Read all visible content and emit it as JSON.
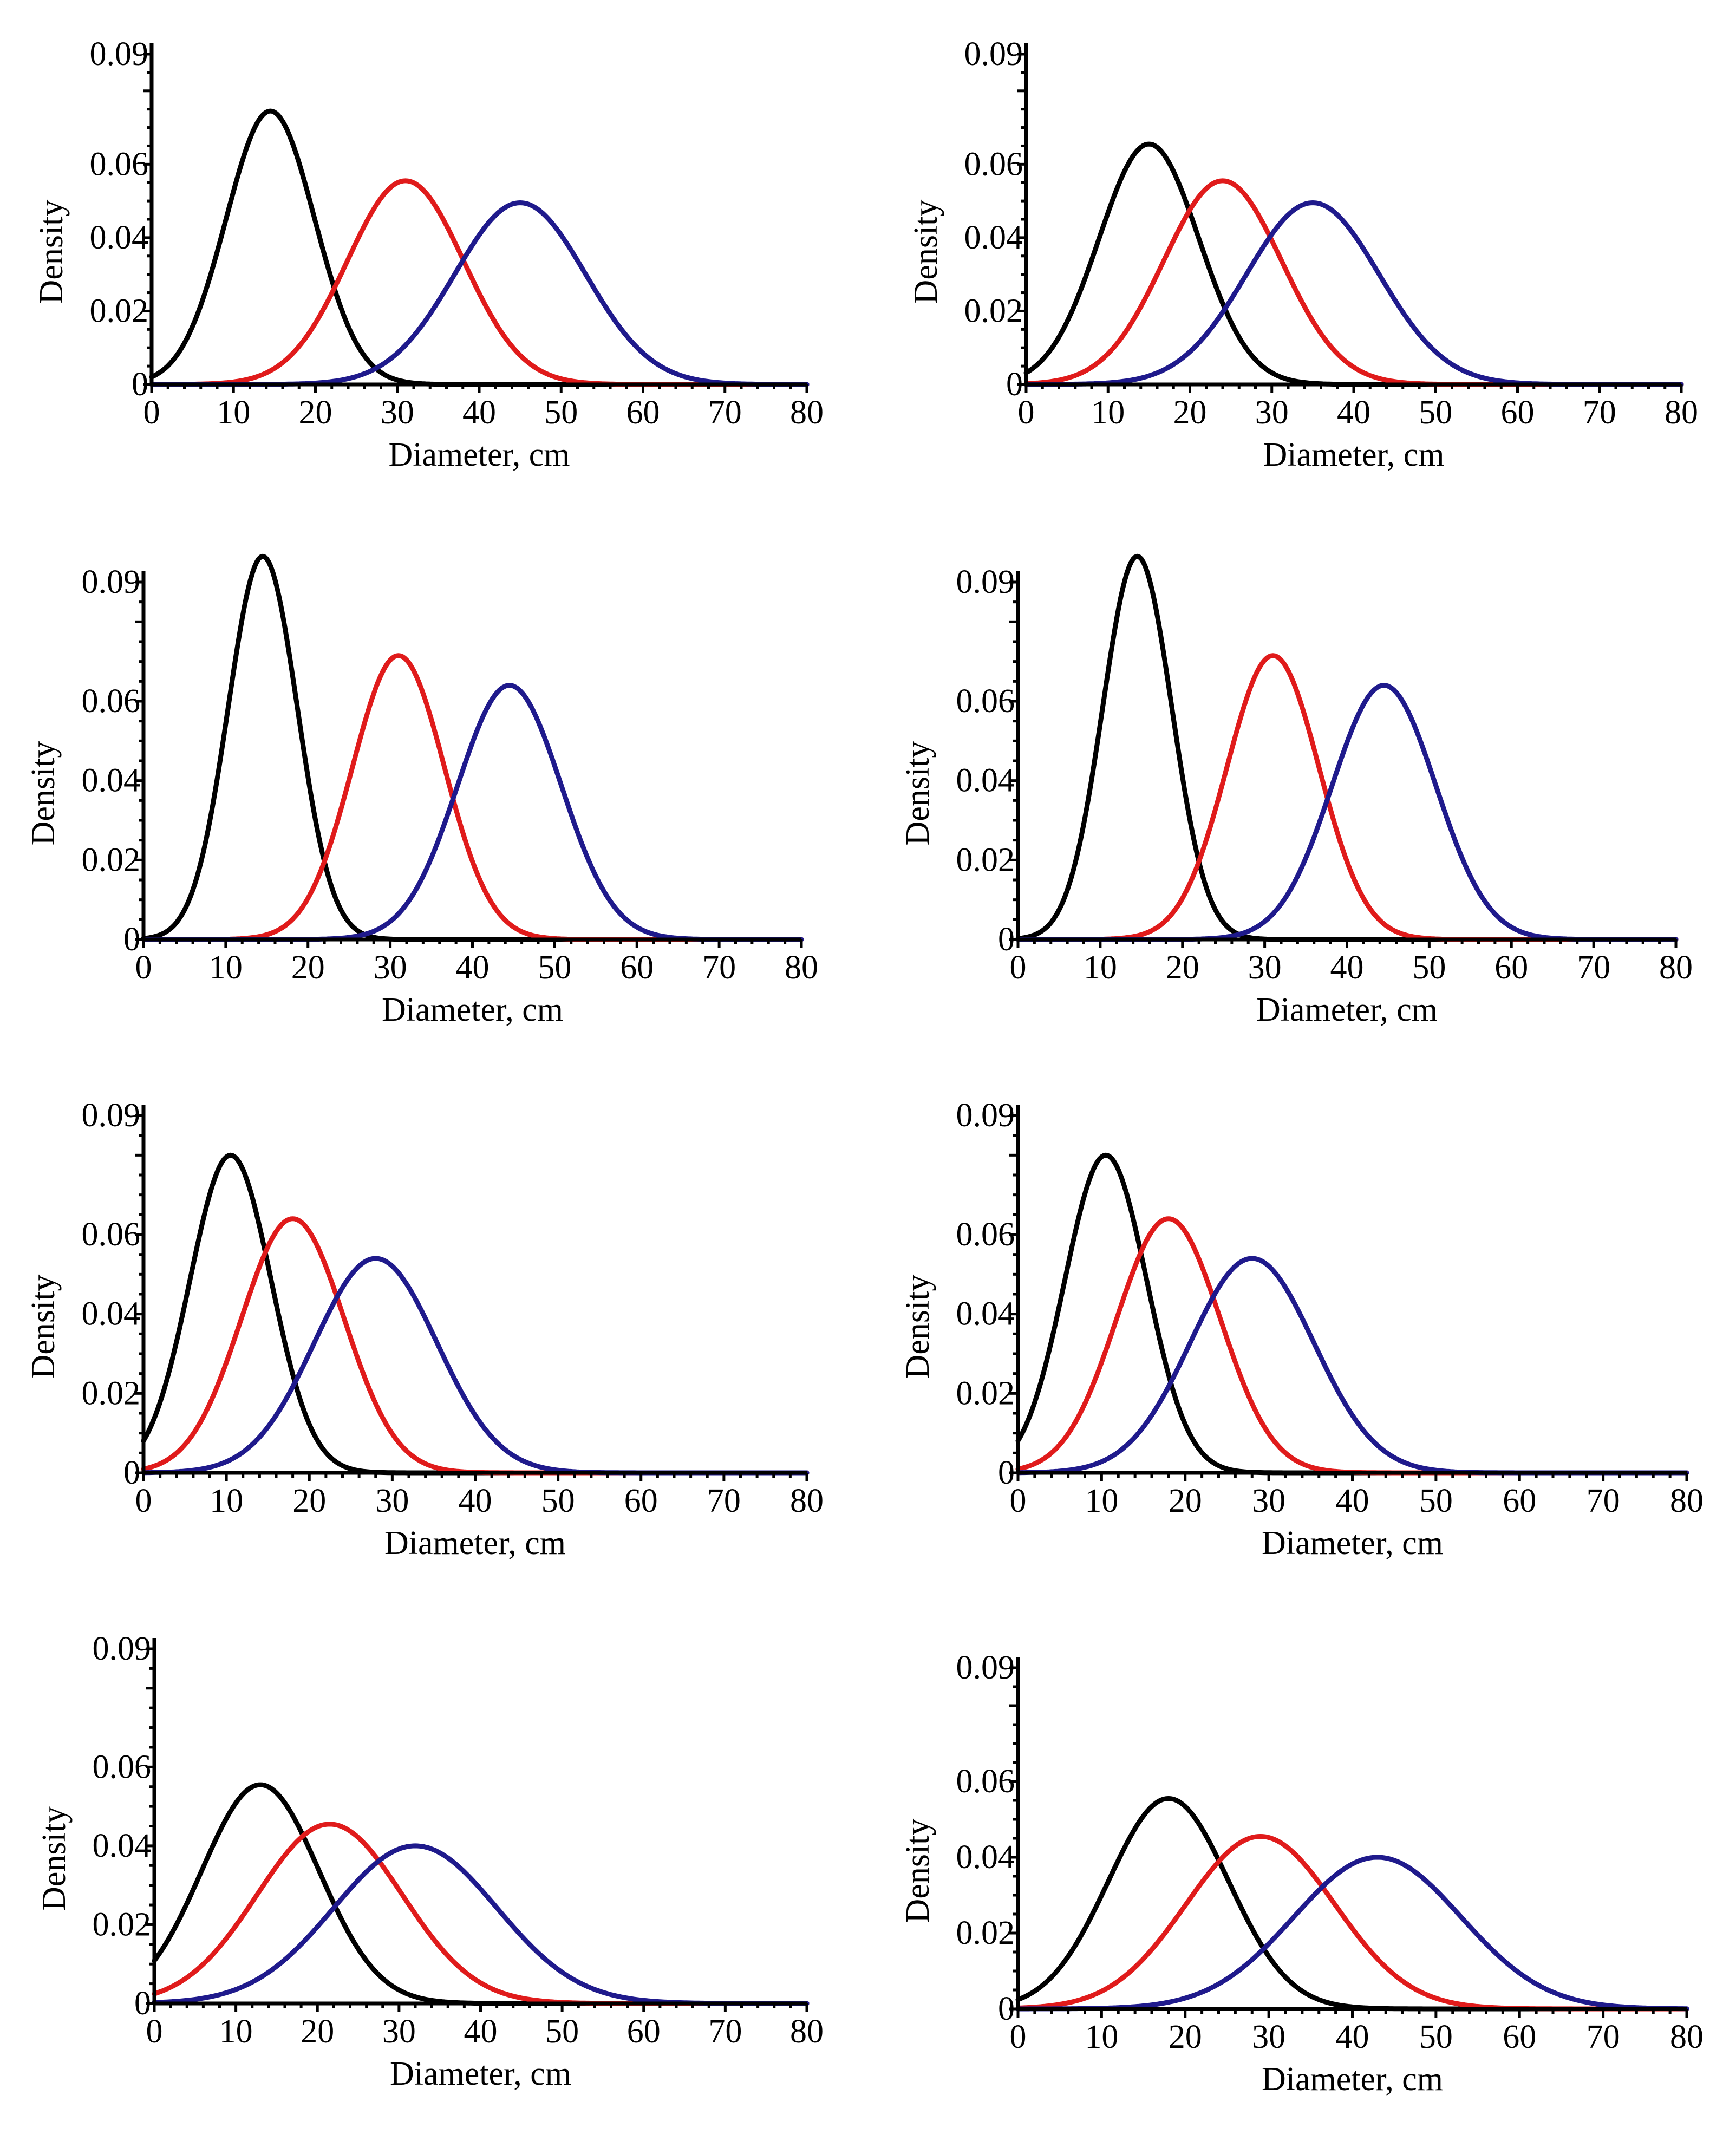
{
  "colors": {
    "black": "#000000",
    "red": "#e01b1b",
    "blue": "#1f1a8c"
  },
  "chart_data": [
    {
      "type": "line",
      "title": "",
      "xlabel": "Diameter, cm",
      "ylabel": "Density",
      "xlim": [
        0,
        80
      ],
      "ylim": [
        0,
        0.09
      ],
      "xticks": [
        "0",
        "10",
        "20",
        "30",
        "40",
        "50",
        "60",
        "70",
        "80"
      ],
      "yticks": [
        "0",
        "0.02",
        "0.04",
        "0.06",
        "0.09"
      ],
      "series": [
        {
          "name": "black",
          "color": "#000000",
          "mean": 14.5,
          "sd": 5.4,
          "peak": 0.0745
        },
        {
          "name": "red",
          "color": "#e01b1b",
          "mean": 31.0,
          "sd": 7.1,
          "peak": 0.0555
        },
        {
          "name": "blue",
          "color": "#1f1a8c",
          "mean": 45.0,
          "sd": 8.0,
          "peak": 0.0495
        }
      ]
    },
    {
      "type": "line",
      "title": "",
      "xlabel": "Diameter, cm",
      "ylabel": "Density",
      "xlim": [
        0,
        80
      ],
      "ylim": [
        0,
        0.09
      ],
      "xticks": [
        "0",
        "10",
        "20",
        "30",
        "40",
        "50",
        "60",
        "70",
        "80"
      ],
      "yticks": [
        "0",
        "0.02",
        "0.04",
        "0.06",
        "0.09"
      ],
      "series": [
        {
          "name": "black",
          "color": "#000000",
          "mean": 15.0,
          "sd": 6.1,
          "peak": 0.0655
        },
        {
          "name": "red",
          "color": "#e01b1b",
          "mean": 24.0,
          "sd": 7.2,
          "peak": 0.0555
        },
        {
          "name": "blue",
          "color": "#1f1a8c",
          "mean": 35.0,
          "sd": 8.1,
          "peak": 0.0495
        }
      ]
    },
    {
      "type": "line",
      "title": "",
      "xlabel": "Diameter, cm",
      "ylabel": "Density",
      "xlim": [
        0,
        80
      ],
      "ylim": [
        0,
        0.09
      ],
      "xticks": [
        "0",
        "10",
        "20",
        "30",
        "40",
        "50",
        "60",
        "70",
        "80"
      ],
      "yticks": [
        "0",
        "0.02",
        "0.04",
        "0.06",
        "0.09"
      ],
      "series": [
        {
          "name": "black",
          "color": "#000000",
          "mean": 14.5,
          "sd": 4.2,
          "peak": 0.0965
        },
        {
          "name": "red",
          "color": "#e01b1b",
          "mean": 31.0,
          "sd": 5.6,
          "peak": 0.0715
        },
        {
          "name": "blue",
          "color": "#1f1a8c",
          "mean": 44.5,
          "sd": 6.3,
          "peak": 0.064
        }
      ]
    },
    {
      "type": "line",
      "title": "",
      "xlabel": "Diameter, cm",
      "ylabel": "Density",
      "xlim": [
        0,
        80
      ],
      "ylim": [
        0,
        0.09
      ],
      "xticks": [
        "0",
        "10",
        "20",
        "30",
        "40",
        "50",
        "60",
        "70",
        "80"
      ],
      "yticks": [
        "0",
        "0.02",
        "0.04",
        "0.06",
        "0.09"
      ],
      "series": [
        {
          "name": "black",
          "color": "#000000",
          "mean": 14.5,
          "sd": 4.2,
          "peak": 0.0965
        },
        {
          "name": "red",
          "color": "#e01b1b",
          "mean": 31.0,
          "sd": 5.6,
          "peak": 0.0715
        },
        {
          "name": "blue",
          "color": "#1f1a8c",
          "mean": 44.5,
          "sd": 6.3,
          "peak": 0.064
        }
      ]
    },
    {
      "type": "line",
      "title": "",
      "xlabel": "Diameter, cm",
      "ylabel": "Density",
      "xlim": [
        0,
        80
      ],
      "ylim": [
        0,
        0.09
      ],
      "xticks": [
        "0",
        "10",
        "20",
        "30",
        "40",
        "50",
        "60",
        "70",
        "80"
      ],
      "yticks": [
        "0",
        "0.02",
        "0.04",
        "0.06",
        "0.09"
      ],
      "series": [
        {
          "name": "black",
          "color": "#000000",
          "mean": 10.5,
          "sd": 4.9,
          "peak": 0.08
        },
        {
          "name": "red",
          "color": "#e01b1b",
          "mean": 18.0,
          "sd": 6.2,
          "peak": 0.064
        },
        {
          "name": "blue",
          "color": "#1f1a8c",
          "mean": 28.0,
          "sd": 7.4,
          "peak": 0.054
        }
      ]
    },
    {
      "type": "line",
      "title": "",
      "xlabel": "Diameter, cm",
      "ylabel": "Density",
      "xlim": [
        0,
        80
      ],
      "ylim": [
        0,
        0.09
      ],
      "xticks": [
        "0",
        "10",
        "20",
        "30",
        "40",
        "50",
        "60",
        "70",
        "80"
      ],
      "yticks": [
        "0",
        "0.02",
        "0.04",
        "0.06",
        "0.09"
      ],
      "series": [
        {
          "name": "black",
          "color": "#000000",
          "mean": 10.5,
          "sd": 4.9,
          "peak": 0.08
        },
        {
          "name": "red",
          "color": "#e01b1b",
          "mean": 18.0,
          "sd": 6.2,
          "peak": 0.064
        },
        {
          "name": "blue",
          "color": "#1f1a8c",
          "mean": 28.0,
          "sd": 7.4,
          "peak": 0.054
        }
      ]
    },
    {
      "type": "line",
      "title": "",
      "xlabel": "Diameter, cm",
      "ylabel": "Density",
      "xlim": [
        0,
        80
      ],
      "ylim": [
        0,
        0.09
      ],
      "xticks": [
        "0",
        "10",
        "20",
        "30",
        "40",
        "50",
        "60",
        "70",
        "80"
      ],
      "yticks": [
        "0",
        "0.02",
        "0.04",
        "0.06",
        "0.09"
      ],
      "series": [
        {
          "name": "black",
          "color": "#000000",
          "mean": 13.0,
          "sd": 7.2,
          "peak": 0.0555
        },
        {
          "name": "red",
          "color": "#e01b1b",
          "mean": 21.5,
          "sd": 8.9,
          "peak": 0.0455
        },
        {
          "name": "blue",
          "color": "#1f1a8c",
          "mean": 32.0,
          "sd": 10.0,
          "peak": 0.04
        }
      ]
    },
    {
      "type": "line",
      "title": "",
      "xlabel": "Diameter, cm",
      "ylabel": "Density",
      "xlim": [
        0,
        80
      ],
      "ylim": [
        0,
        0.09
      ],
      "xticks": [
        "0",
        "10",
        "20",
        "30",
        "40",
        "50",
        "60",
        "70",
        "80"
      ],
      "yticks": [
        "0",
        "0.02",
        "0.04",
        "0.06",
        "0.09"
      ],
      "series": [
        {
          "name": "black",
          "color": "#000000",
          "mean": 18.0,
          "sd": 7.2,
          "peak": 0.0555
        },
        {
          "name": "red",
          "color": "#e01b1b",
          "mean": 29.0,
          "sd": 8.9,
          "peak": 0.0455
        },
        {
          "name": "blue",
          "color": "#1f1a8c",
          "mean": 43.0,
          "sd": 10.0,
          "peak": 0.04
        }
      ]
    }
  ]
}
